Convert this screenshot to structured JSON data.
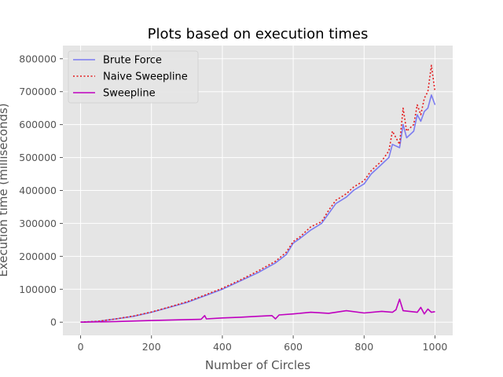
{
  "chart_data": {
    "type": "line",
    "title": "Plots based on execution times",
    "xlabel": "Number of Circles",
    "ylabel": "Execution time (milliseconds)",
    "xlim": [
      -50,
      1050
    ],
    "ylim": [
      -40000,
      840000
    ],
    "x_ticks": [
      0,
      200,
      400,
      600,
      800,
      1000
    ],
    "y_ticks": [
      0,
      100000,
      200000,
      300000,
      400000,
      500000,
      600000,
      700000,
      800000
    ],
    "grid": true,
    "legend_position": "top-left",
    "style": "ggplot",
    "series": [
      {
        "name": "Brute Force",
        "color": "#7b7bf0",
        "line_style": "solid",
        "x": [
          0,
          50,
          100,
          150,
          200,
          250,
          300,
          350,
          400,
          450,
          500,
          550,
          580,
          600,
          620,
          650,
          680,
          700,
          720,
          750,
          770,
          800,
          820,
          850,
          870,
          880,
          900,
          910,
          920,
          940,
          950,
          960,
          970,
          980,
          990,
          1000
        ],
        "y": [
          0,
          3000,
          10000,
          18000,
          30000,
          45000,
          60000,
          80000,
          100000,
          125000,
          150000,
          180000,
          205000,
          240000,
          255000,
          280000,
          300000,
          330000,
          360000,
          380000,
          400000,
          420000,
          450000,
          480000,
          500000,
          540000,
          530000,
          600000,
          560000,
          580000,
          630000,
          610000,
          640000,
          650000,
          690000,
          660000
        ]
      },
      {
        "name": "Naive Sweepline",
        "color": "#e41a1c",
        "line_style": "dotted",
        "x": [
          0,
          50,
          100,
          150,
          200,
          250,
          300,
          350,
          400,
          450,
          500,
          550,
          580,
          600,
          620,
          650,
          680,
          700,
          720,
          750,
          770,
          800,
          820,
          850,
          870,
          880,
          900,
          910,
          920,
          940,
          950,
          960,
          970,
          980,
          990,
          1000
        ],
        "y": [
          0,
          3000,
          10000,
          19000,
          31000,
          46000,
          62000,
          82000,
          103000,
          128000,
          155000,
          185000,
          212000,
          245000,
          260000,
          290000,
          305000,
          340000,
          370000,
          390000,
          410000,
          430000,
          460000,
          490000,
          520000,
          580000,
          540000,
          650000,
          580000,
          600000,
          660000,
          630000,
          680000,
          700000,
          780000,
          700000
        ]
      },
      {
        "name": "Sweepline",
        "color": "#bf00bf",
        "line_style": "solid",
        "x": [
          0,
          100,
          200,
          300,
          340,
          350,
          355,
          400,
          450,
          500,
          540,
          550,
          560,
          600,
          650,
          700,
          750,
          800,
          850,
          880,
          890,
          900,
          910,
          950,
          960,
          970,
          980,
          990,
          1000
        ],
        "y": [
          0,
          2000,
          5000,
          8000,
          9000,
          20000,
          10000,
          13000,
          15000,
          18000,
          20000,
          10000,
          22000,
          25000,
          30000,
          27000,
          35000,
          28000,
          33000,
          30000,
          38000,
          70000,
          35000,
          30000,
          45000,
          25000,
          40000,
          30000,
          32000
        ]
      }
    ]
  }
}
